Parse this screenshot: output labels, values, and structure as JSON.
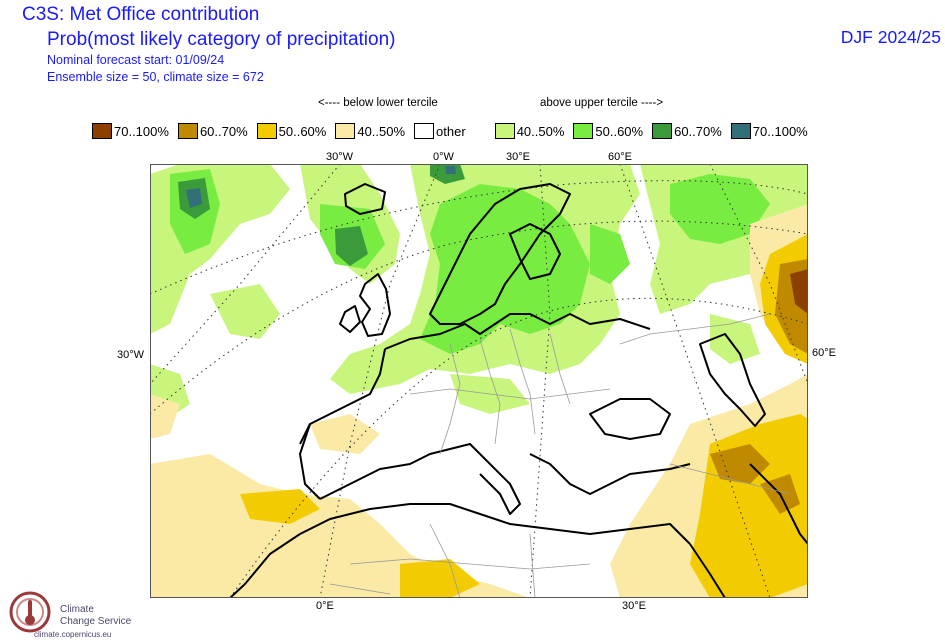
{
  "header": {
    "title": "C3S: Met Office contribution",
    "subtitle": "Prob(most likely category of precipitation)",
    "forecast_start": "Nominal forecast start: 01/09/24",
    "ensemble": "Ensemble size = 50, climate size = 672",
    "season": "DJF 2024/25"
  },
  "tercile_labels": {
    "below": "<---- below lower tercile",
    "above": "above upper tercile ---->"
  },
  "legend": [
    {
      "label": "70..100%",
      "color": "#8b4000"
    },
    {
      "label": "60..70%",
      "color": "#c08a00"
    },
    {
      "label": "50..60%",
      "color": "#f2cc00"
    },
    {
      "label": "40..50%",
      "color": "#faeaa6"
    },
    {
      "label": "other",
      "color": "#ffffff"
    },
    {
      "label": "40..50%",
      "color": "#c8f57c"
    },
    {
      "label": "50..60%",
      "color": "#78ec40"
    },
    {
      "label": "60..70%",
      "color": "#3b9a3a"
    },
    {
      "label": "70..100%",
      "color": "#336f78"
    }
  ],
  "coords": {
    "top": [
      "30°W",
      "0°W",
      "30°E",
      "60°E"
    ],
    "left": "30°W",
    "right": "60°E",
    "bottom": [
      "0°E",
      "30°E"
    ]
  },
  "logo": {
    "line1": "Climate",
    "line2": "Change Service",
    "url": "climate.copernicus.eu"
  }
}
